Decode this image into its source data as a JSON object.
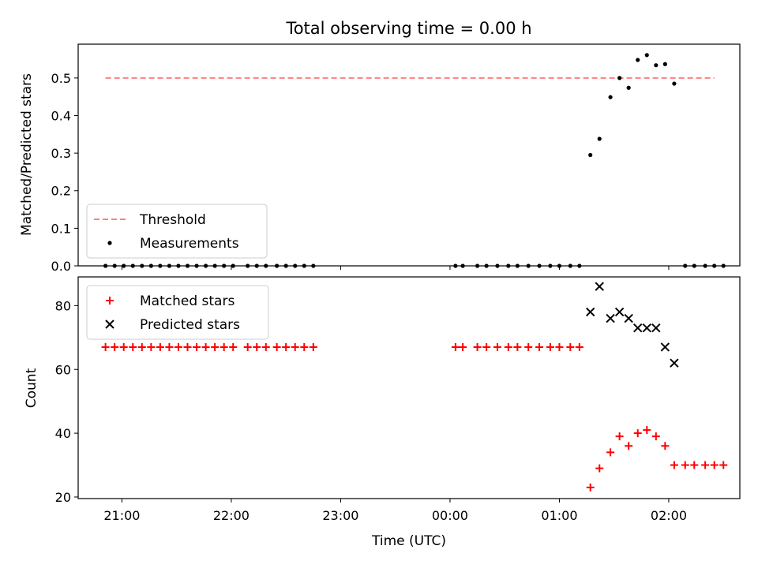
{
  "figure_title": "Total observing time = 0.00 h",
  "chart_data": [
    {
      "type": "scatter",
      "title": "Total observing time = 0.00 h",
      "xlabel": "",
      "ylabel": "Matched/Predicted stars",
      "ylim": [
        0,
        0.59
      ],
      "yticks": [
        0.0,
        0.1,
        0.2,
        0.3,
        0.4,
        0.5
      ],
      "ytick_labels": [
        "0.0",
        "0.1",
        "0.2",
        "0.3",
        "0.4",
        "0.5"
      ],
      "legend_position": "lower-left",
      "grid": false,
      "threshold": {
        "name": "Threshold",
        "y": 0.5,
        "x_start": "20:51",
        "x_end": "02:25",
        "color": "#ff7f7f"
      },
      "series": [
        {
          "name": "Measurements",
          "color": "#000000",
          "marker": "dot",
          "points": [
            [
              "20:51",
              0.0
            ],
            [
              "20:56",
              0.0
            ],
            [
              "21:01",
              0.0
            ],
            [
              "21:06",
              0.0
            ],
            [
              "21:11",
              0.0
            ],
            [
              "21:16",
              0.0
            ],
            [
              "21:21",
              0.0
            ],
            [
              "21:26",
              0.0
            ],
            [
              "21:31",
              0.0
            ],
            [
              "21:36",
              0.0
            ],
            [
              "21:41",
              0.0
            ],
            [
              "21:46",
              0.0
            ],
            [
              "21:51",
              0.0
            ],
            [
              "21:56",
              0.0
            ],
            [
              "22:01",
              0.0
            ],
            [
              "22:09",
              0.0
            ],
            [
              "22:14",
              0.0
            ],
            [
              "22:19",
              0.0
            ],
            [
              "22:25",
              0.0
            ],
            [
              "22:30",
              0.0
            ],
            [
              "22:35",
              0.0
            ],
            [
              "22:40",
              0.0
            ],
            [
              "22:45",
              0.0
            ],
            [
              "00:03",
              0.0
            ],
            [
              "00:07",
              0.0
            ],
            [
              "00:15",
              0.0
            ],
            [
              "00:20",
              0.0
            ],
            [
              "00:26",
              0.0
            ],
            [
              "00:32",
              0.0
            ],
            [
              "00:37",
              0.0
            ],
            [
              "00:43",
              0.0
            ],
            [
              "00:49",
              0.0
            ],
            [
              "00:55",
              0.0
            ],
            [
              "01:00",
              0.0
            ],
            [
              "01:06",
              0.0
            ],
            [
              "01:11",
              0.0
            ],
            [
              "01:17",
              0.295
            ],
            [
              "01:22",
              0.338
            ],
            [
              "01:28",
              0.449
            ],
            [
              "01:33",
              0.5
            ],
            [
              "01:38",
              0.474
            ],
            [
              "01:43",
              0.548
            ],
            [
              "01:48",
              0.561
            ],
            [
              "01:53",
              0.534
            ],
            [
              "01:58",
              0.537
            ],
            [
              "02:03",
              0.485
            ],
            [
              "02:09",
              0.0
            ],
            [
              "02:14",
              0.0
            ],
            [
              "02:20",
              0.0
            ],
            [
              "02:25",
              0.0
            ],
            [
              "02:30",
              0.0
            ]
          ]
        }
      ],
      "legend": [
        {
          "label": "Threshold",
          "style": "dashed-line",
          "color": "#ff7f7f"
        },
        {
          "label": "Measurements",
          "style": "dot",
          "color": "#000000"
        }
      ]
    },
    {
      "type": "scatter",
      "title": "",
      "xlabel": "Time (UTC)",
      "ylabel": "Count",
      "ylim": [
        19.5,
        89
      ],
      "yticks": [
        20,
        40,
        60,
        80
      ],
      "ytick_labels": [
        "20",
        "40",
        "60",
        "80"
      ],
      "xticks": [
        "21:00",
        "22:00",
        "23:00",
        "00:00",
        "01:00",
        "02:00"
      ],
      "legend_position": "top-left",
      "grid": false,
      "series": [
        {
          "name": "Matched stars",
          "color": "#ff0000",
          "marker": "plus",
          "points": [
            [
              "20:51",
              67
            ],
            [
              "20:56",
              67
            ],
            [
              "21:01",
              67
            ],
            [
              "21:06",
              67
            ],
            [
              "21:11",
              67
            ],
            [
              "21:16",
              67
            ],
            [
              "21:21",
              67
            ],
            [
              "21:26",
              67
            ],
            [
              "21:31",
              67
            ],
            [
              "21:36",
              67
            ],
            [
              "21:41",
              67
            ],
            [
              "21:46",
              67
            ],
            [
              "21:51",
              67
            ],
            [
              "21:56",
              67
            ],
            [
              "22:01",
              67
            ],
            [
              "22:09",
              67
            ],
            [
              "22:14",
              67
            ],
            [
              "22:19",
              67
            ],
            [
              "22:25",
              67
            ],
            [
              "22:30",
              67
            ],
            [
              "22:35",
              67
            ],
            [
              "22:40",
              67
            ],
            [
              "22:45",
              67
            ],
            [
              "00:03",
              67
            ],
            [
              "00:07",
              67
            ],
            [
              "00:15",
              67
            ],
            [
              "00:20",
              67
            ],
            [
              "00:26",
              67
            ],
            [
              "00:32",
              67
            ],
            [
              "00:37",
              67
            ],
            [
              "00:43",
              67
            ],
            [
              "00:49",
              67
            ],
            [
              "00:55",
              67
            ],
            [
              "01:00",
              67
            ],
            [
              "01:06",
              67
            ],
            [
              "01:11",
              67
            ],
            [
              "01:17",
              23
            ],
            [
              "01:22",
              29
            ],
            [
              "01:28",
              34
            ],
            [
              "01:33",
              39
            ],
            [
              "01:38",
              36
            ],
            [
              "01:43",
              40
            ],
            [
              "01:48",
              41
            ],
            [
              "01:53",
              39
            ],
            [
              "01:58",
              36
            ],
            [
              "02:03",
              30
            ],
            [
              "02:09",
              30
            ],
            [
              "02:14",
              30
            ],
            [
              "02:20",
              30
            ],
            [
              "02:25",
              30
            ],
            [
              "02:30",
              30
            ]
          ]
        },
        {
          "name": "Predicted stars",
          "color": "#000000",
          "marker": "x",
          "points": [
            [
              "01:17",
              78
            ],
            [
              "01:22",
              86
            ],
            [
              "01:28",
              76
            ],
            [
              "01:33",
              78
            ],
            [
              "01:38",
              76
            ],
            [
              "01:43",
              73
            ],
            [
              "01:48",
              73
            ],
            [
              "01:53",
              73
            ],
            [
              "01:58",
              67
            ],
            [
              "02:03",
              62
            ]
          ]
        }
      ],
      "legend": [
        {
          "label": "Matched stars",
          "style": "plus",
          "color": "#ff0000"
        },
        {
          "label": "Predicted stars",
          "style": "x",
          "color": "#000000"
        }
      ]
    }
  ]
}
